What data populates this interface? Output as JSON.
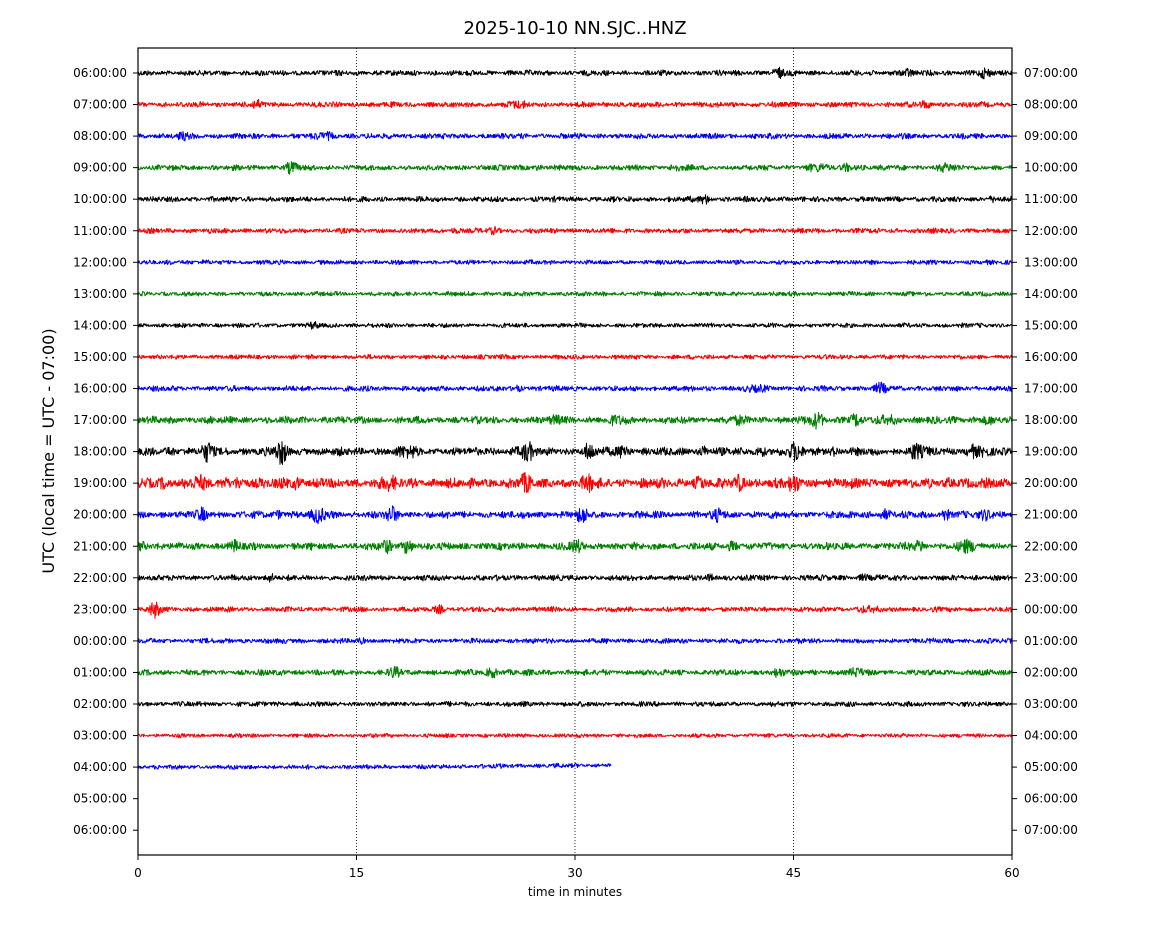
{
  "chart_data": {
    "type": "line",
    "title": "2025-10-10 NN.SJC..HNZ",
    "xlabel": "time in minutes",
    "ylabel": "UTC (local time = UTC - 07:00)",
    "xlim": [
      0,
      60
    ],
    "x_ticks": [
      "0",
      "15",
      "30",
      "45",
      "60"
    ],
    "x_tick_values": [
      0,
      15,
      30,
      45,
      60
    ],
    "vertical_gridlines_at": [
      15,
      30,
      45
    ],
    "trace_colors": [
      "#000000",
      "#ff0000",
      "#0000ff",
      "#008000"
    ],
    "left_ticks": [
      "06:00:00",
      "07:00:00",
      "08:00:00",
      "09:00:00",
      "10:00:00",
      "11:00:00",
      "12:00:00",
      "13:00:00",
      "14:00:00",
      "15:00:00",
      "16:00:00",
      "17:00:00",
      "18:00:00",
      "19:00:00",
      "20:00:00",
      "21:00:00",
      "22:00:00",
      "23:00:00",
      "00:00:00",
      "01:00:00",
      "02:00:00",
      "03:00:00",
      "04:00:00",
      "05:00:00",
      "06:00:00"
    ],
    "right_ticks": [
      "07:00:00",
      "08:00:00",
      "09:00:00",
      "10:00:00",
      "11:00:00",
      "12:00:00",
      "13:00:00",
      "14:00:00",
      "15:00:00",
      "16:00:00",
      "17:00:00",
      "18:00:00",
      "19:00:00",
      "20:00:00",
      "21:00:00",
      "22:00:00",
      "23:00:00",
      "00:00:00",
      "01:00:00",
      "02:00:00",
      "03:00:00",
      "04:00:00",
      "05:00:00",
      "06:00:00",
      "07:00:00"
    ],
    "traces": [
      {
        "row": 0,
        "start_min": 0,
        "end_min": 60,
        "noise": 0.3,
        "bursts": [
          {
            "t": 44,
            "a": 0.7
          },
          {
            "t": 52.5,
            "a": 0.9
          },
          {
            "t": 58,
            "a": 0.6
          }
        ]
      },
      {
        "row": 1,
        "start_min": 0,
        "end_min": 60,
        "noise": 0.3,
        "bursts": [
          {
            "t": 8,
            "a": 0.5
          },
          {
            "t": 26,
            "a": 0.6
          },
          {
            "t": 54,
            "a": 0.4
          }
        ]
      },
      {
        "row": 2,
        "start_min": 0,
        "end_min": 60,
        "noise": 0.3,
        "bursts": [
          {
            "t": 3.3,
            "a": 0.5
          },
          {
            "t": 12.8,
            "a": 0.7
          }
        ]
      },
      {
        "row": 3,
        "start_min": 0,
        "end_min": 60,
        "noise": 0.3,
        "bursts": [
          {
            "t": 10.5,
            "a": 0.8
          },
          {
            "t": 27,
            "a": 0.5
          },
          {
            "t": 37,
            "a": 0.6
          },
          {
            "t": 46.5,
            "a": 0.8
          },
          {
            "t": 49,
            "a": 1.1
          },
          {
            "t": 55.5,
            "a": 0.8
          }
        ]
      },
      {
        "row": 4,
        "start_min": 0,
        "end_min": 60,
        "noise": 0.3,
        "bursts": [
          {
            "t": 38.8,
            "a": 0.8
          },
          {
            "t": 58.5,
            "a": 0.3
          }
        ]
      },
      {
        "row": 5,
        "start_min": 0,
        "end_min": 60,
        "noise": 0.28,
        "bursts": [
          {
            "t": 21.5,
            "a": 0.4
          },
          {
            "t": 24.5,
            "a": 0.4
          }
        ]
      },
      {
        "row": 6,
        "start_min": 0,
        "end_min": 60,
        "noise": 0.25,
        "bursts": [
          {
            "t": 2.5,
            "a": 0.4
          }
        ]
      },
      {
        "row": 7,
        "start_min": 0,
        "end_min": 60,
        "noise": 0.25,
        "bursts": []
      },
      {
        "row": 8,
        "start_min": 0,
        "end_min": 60,
        "noise": 0.25,
        "bursts": [
          {
            "t": 12,
            "a": 0.3
          }
        ]
      },
      {
        "row": 9,
        "start_min": 0,
        "end_min": 60,
        "noise": 0.25,
        "bursts": [
          {
            "t": 23,
            "a": 0.3
          }
        ]
      },
      {
        "row": 10,
        "start_min": 0,
        "end_min": 60,
        "noise": 0.3,
        "bursts": [
          {
            "t": 26,
            "a": 0.4
          },
          {
            "t": 42.5,
            "a": 0.5
          },
          {
            "t": 51,
            "a": 0.6
          }
        ]
      },
      {
        "row": 11,
        "start_min": 0,
        "end_min": 60,
        "noise": 0.4,
        "bursts": [
          {
            "t": 29,
            "a": 0.7
          },
          {
            "t": 33,
            "a": 0.7
          },
          {
            "t": 41,
            "a": 0.6
          },
          {
            "t": 46.5,
            "a": 1.1
          },
          {
            "t": 49,
            "a": 1.3
          },
          {
            "t": 51.5,
            "a": 0.9
          },
          {
            "t": 58,
            "a": 0.9
          }
        ]
      },
      {
        "row": 12,
        "start_min": 0,
        "end_min": 60,
        "noise": 0.45,
        "bursts": [
          {
            "t": 2.5,
            "a": 0.8
          },
          {
            "t": 4.8,
            "a": 1.1
          },
          {
            "t": 9.8,
            "a": 1.6
          },
          {
            "t": 18.5,
            "a": 1.0
          },
          {
            "t": 26.5,
            "a": 1.8
          },
          {
            "t": 31,
            "a": 1.1
          },
          {
            "t": 33.2,
            "a": 1.4
          },
          {
            "t": 39,
            "a": 0.9
          },
          {
            "t": 43,
            "a": 1.0
          },
          {
            "t": 45,
            "a": 1.2
          },
          {
            "t": 47.5,
            "a": 0.8
          },
          {
            "t": 53.5,
            "a": 1.4
          },
          {
            "t": 57.5,
            "a": 1.5
          }
        ]
      },
      {
        "row": 13,
        "start_min": 0,
        "end_min": 60,
        "noise": 0.55,
        "bursts": [
          {
            "t": 1.5,
            "a": 1.1
          },
          {
            "t": 4,
            "a": 0.9
          },
          {
            "t": 6.5,
            "a": 2.0
          },
          {
            "t": 10.5,
            "a": 1.7
          },
          {
            "t": 17,
            "a": 1.1
          },
          {
            "t": 26.5,
            "a": 1.0
          },
          {
            "t": 31,
            "a": 0.9
          },
          {
            "t": 38.5,
            "a": 0.9
          },
          {
            "t": 41.5,
            "a": 1.3
          },
          {
            "t": 45,
            "a": 0.9
          },
          {
            "t": 56,
            "a": 0.8
          }
        ]
      },
      {
        "row": 14,
        "start_min": 0,
        "end_min": 60,
        "noise": 0.4,
        "bursts": [
          {
            "t": 4.5,
            "a": 0.9
          },
          {
            "t": 10,
            "a": 0.8
          },
          {
            "t": 12.5,
            "a": 1.1
          },
          {
            "t": 17.5,
            "a": 1.0
          },
          {
            "t": 30.5,
            "a": 0.9
          },
          {
            "t": 40,
            "a": 0.8
          },
          {
            "t": 51,
            "a": 1.1
          },
          {
            "t": 55.5,
            "a": 1.0
          },
          {
            "t": 58.5,
            "a": 1.0
          }
        ]
      },
      {
        "row": 15,
        "start_min": 0,
        "end_min": 60,
        "noise": 0.4,
        "bursts": [
          {
            "t": 0.5,
            "a": 0.9
          },
          {
            "t": 6.5,
            "a": 0.6
          },
          {
            "t": 17,
            "a": 0.8
          },
          {
            "t": 18.5,
            "a": 1.6
          },
          {
            "t": 30,
            "a": 0.7
          },
          {
            "t": 41,
            "a": 1.0
          },
          {
            "t": 53.5,
            "a": 1.1
          },
          {
            "t": 57,
            "a": 1.2
          }
        ]
      },
      {
        "row": 16,
        "start_min": 0,
        "end_min": 60,
        "noise": 0.32,
        "bursts": [
          {
            "t": 9,
            "a": 0.7
          },
          {
            "t": 39.5,
            "a": 0.4
          },
          {
            "t": 50,
            "a": 0.5
          }
        ]
      },
      {
        "row": 17,
        "start_min": 0,
        "end_min": 60,
        "noise": 0.28,
        "bursts": [
          {
            "t": 1.2,
            "a": 1.0
          },
          {
            "t": 20.8,
            "a": 0.6
          },
          {
            "t": 50,
            "a": 0.6
          }
        ]
      },
      {
        "row": 18,
        "start_min": 0,
        "end_min": 60,
        "noise": 0.28,
        "bursts": [
          {
            "t": 15.5,
            "a": 0.3
          }
        ]
      },
      {
        "row": 19,
        "start_min": 0,
        "end_min": 60,
        "noise": 0.32,
        "bursts": [
          {
            "t": 17.5,
            "a": 0.6
          },
          {
            "t": 24.5,
            "a": 1.4
          },
          {
            "t": 44,
            "a": 0.5
          },
          {
            "t": 49.5,
            "a": 0.6
          }
        ]
      },
      {
        "row": 20,
        "start_min": 0,
        "end_min": 60,
        "noise": 0.28,
        "bursts": []
      },
      {
        "row": 21,
        "start_min": 0,
        "end_min": 60,
        "noise": 0.22,
        "bursts": []
      },
      {
        "row": 22,
        "start_min": 0,
        "end_min": 32.5,
        "noise": 0.25,
        "bursts": [],
        "drift_end": 0.7
      }
    ]
  }
}
